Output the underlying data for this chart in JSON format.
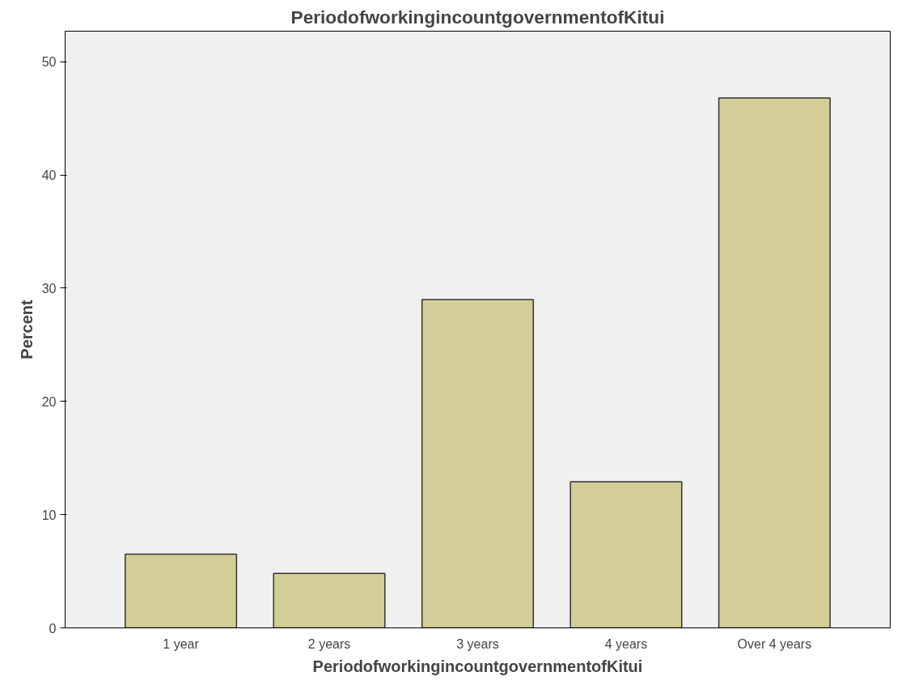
{
  "chart_data": {
    "type": "bar",
    "title": "PeriodofworkingincountgovernmentofKitui",
    "xlabel": "PeriodofworkingincountgovernmentofKitui",
    "ylabel": "Percent",
    "categories": [
      "1 year",
      "2 years",
      "3 years",
      "4 years",
      "Over 4 years"
    ],
    "values": [
      6.5,
      4.8,
      29.0,
      12.9,
      46.8
    ],
    "color": "#d3ce97",
    "ylim": [
      0,
      52.7
    ],
    "yticks": [
      0,
      10,
      20,
      30,
      40,
      50
    ],
    "grid": false
  }
}
